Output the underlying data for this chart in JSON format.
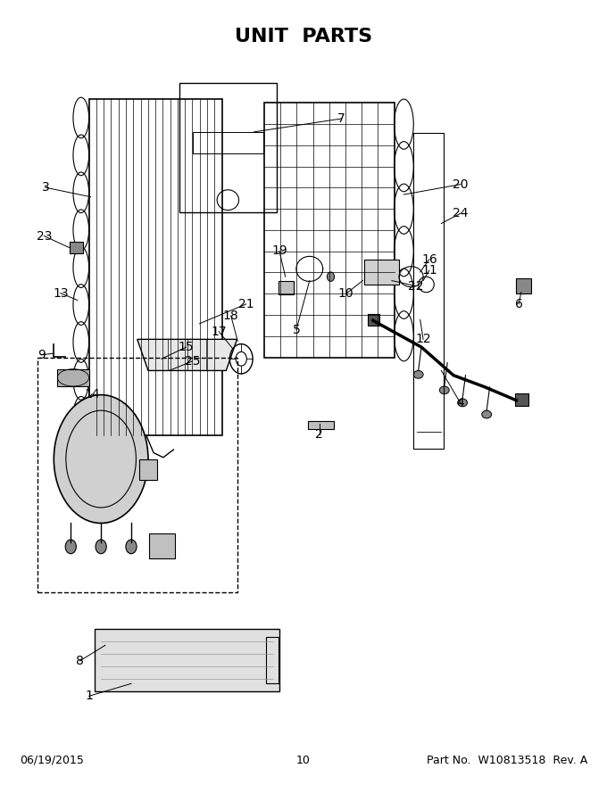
{
  "title": "UNIT  PARTS",
  "title_fontsize": 16,
  "title_bold": true,
  "footer_left": "06/19/2015",
  "footer_center": "10",
  "footer_right": "Part No.  W10813518  Rev. A",
  "footer_fontsize": 9,
  "bg_color": "#ffffff",
  "line_color": "#000000",
  "label_fontsize": 10
}
